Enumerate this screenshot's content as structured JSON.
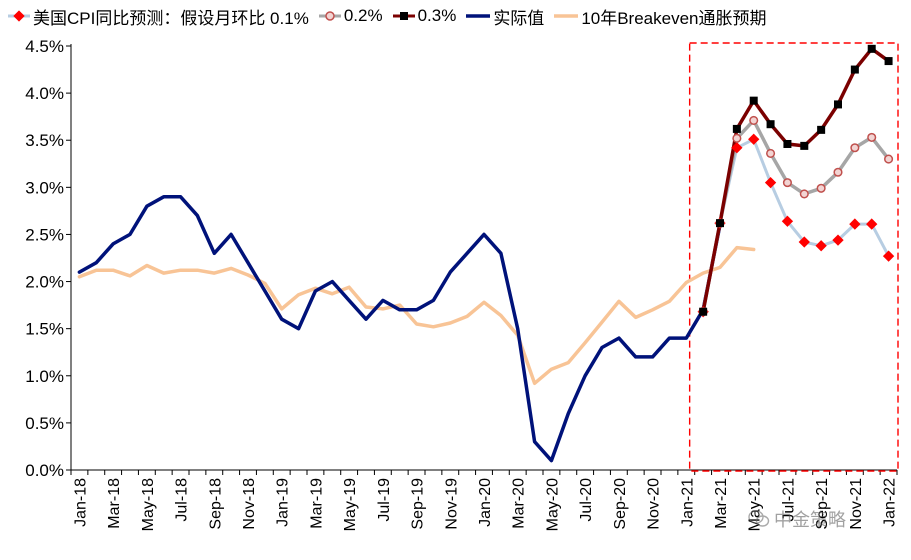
{
  "legend": [
    {
      "key": "p01",
      "label": "美国CPI同比预测：假设月环比 0.1%"
    },
    {
      "key": "p02",
      "label": "0.2%"
    },
    {
      "key": "p03",
      "label": "0.3%"
    },
    {
      "key": "actual",
      "label": "实际值"
    },
    {
      "key": "breakeven",
      "label": "10年Breakeven通胀预期"
    }
  ],
  "watermark": {
    "text": "中金策略",
    "icon": "wechat-icon"
  },
  "colors": {
    "actual": "#00127a",
    "breakeven": "#f8c496",
    "p01_line": "#b7cde2",
    "p01_marker": "#ff0000",
    "p02_line": "#a6a6a6",
    "p02_marker": "#c0504d",
    "p03_line": "#7b0000",
    "p03_marker": "#000000",
    "forecast_box": "#ff0000"
  },
  "chart_data": {
    "type": "line",
    "title": "",
    "xlabel": "",
    "ylabel": "",
    "ylim": [
      0,
      4.5
    ],
    "y_ticks": [
      "0.0%",
      "0.5%",
      "1.0%",
      "1.5%",
      "2.0%",
      "2.5%",
      "3.0%",
      "3.5%",
      "4.0%",
      "4.5%"
    ],
    "x_tick_labels": [
      "Jan-18",
      "Mar-18",
      "May-18",
      "Jul-18",
      "Sep-18",
      "Nov-18",
      "Jan-19",
      "Mar-19",
      "May-19",
      "Jul-19",
      "Sep-19",
      "Nov-19",
      "Jan-20",
      "Mar-20",
      "May-20",
      "Jul-20",
      "Sep-20",
      "Nov-20",
      "Jan-21",
      "Mar-21",
      "May-21",
      "Jul-21",
      "Sep-21",
      "Nov-21",
      "Jan-22"
    ],
    "x_tick_months": [
      0,
      2,
      4,
      6,
      8,
      10,
      12,
      14,
      16,
      18,
      20,
      22,
      24,
      26,
      28,
      30,
      32,
      34,
      36,
      38,
      40,
      42,
      44,
      46,
      48
    ],
    "grid": false,
    "legend_position": "top",
    "highlight_box": {
      "start": "Feb-21",
      "end": "Jan-22",
      "style": "red-dashed"
    },
    "series": [
      {
        "key": "actual",
        "start": "Jan-18",
        "values": [
          2.1,
          2.2,
          2.4,
          2.5,
          2.8,
          2.9,
          2.9,
          2.7,
          2.3,
          2.5,
          2.2,
          1.9,
          1.6,
          1.5,
          1.9,
          2.0,
          1.8,
          1.6,
          1.8,
          1.7,
          1.7,
          1.8,
          2.1,
          2.3,
          2.5,
          2.3,
          1.5,
          0.3,
          0.1,
          0.6,
          1.0,
          1.3,
          1.4,
          1.2,
          1.2,
          1.4,
          1.4,
          1.7,
          2.6
        ]
      },
      {
        "key": "breakeven",
        "start": "Jan-18",
        "values": [
          2.05,
          2.12,
          2.12,
          2.06,
          2.17,
          2.09,
          2.12,
          2.12,
          2.09,
          2.14,
          2.07,
          1.98,
          1.71,
          1.86,
          1.93,
          1.87,
          1.94,
          1.73,
          1.71,
          1.75,
          1.55,
          1.52,
          1.56,
          1.63,
          1.78,
          1.64,
          1.43,
          0.92,
          1.07,
          1.14,
          1.35,
          1.57,
          1.79,
          1.62,
          1.7,
          1.79,
          1.99,
          2.09,
          2.15,
          2.36,
          2.34
        ]
      },
      {
        "key": "p01",
        "start": "Feb-21",
        "values": [
          1.68,
          2.62,
          3.42,
          3.51,
          3.05,
          2.64,
          2.42,
          2.38,
          2.44,
          2.61,
          2.61,
          2.27
        ]
      },
      {
        "key": "p02",
        "start": "Feb-21",
        "values": [
          1.68,
          2.62,
          3.52,
          3.71,
          3.36,
          3.05,
          2.93,
          2.99,
          3.16,
          3.42,
          3.53,
          3.3
        ]
      },
      {
        "key": "p03",
        "start": "Feb-21",
        "values": [
          1.68,
          2.62,
          3.62,
          3.92,
          3.67,
          3.46,
          3.44,
          3.61,
          3.88,
          4.25,
          4.47,
          4.34
        ]
      }
    ]
  }
}
